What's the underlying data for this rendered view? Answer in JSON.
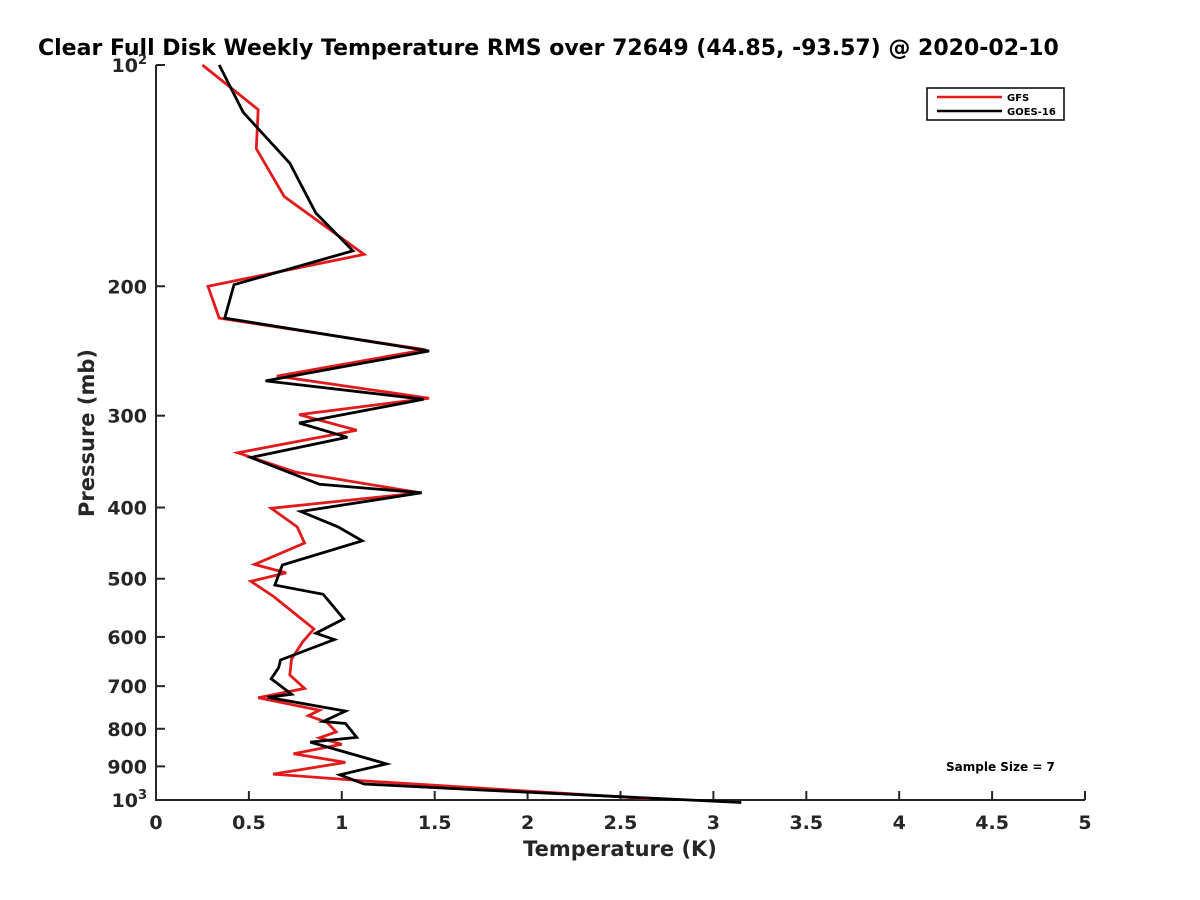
{
  "chart_data": {
    "type": "line",
    "title": "Clear Full Disk Weekly Temperature RMS over 72649 (44.85, -93.57) @ 2020-02-10",
    "xlabel": "Temperature (K)",
    "ylabel": "Pressure (mb)",
    "xlim": [
      0,
      5
    ],
    "ylim": [
      100,
      1000
    ],
    "y_scale": "log",
    "y_reversed": true,
    "grid": false,
    "legend_position": "top-right",
    "x_ticks": [
      "0",
      "0.5",
      "1",
      "1.5",
      "2",
      "2.5",
      "3",
      "3.5",
      "4",
      "4.5",
      "5"
    ],
    "y_ticks": [
      {
        "value": 100,
        "label": "10",
        "sup": "2"
      },
      {
        "value": 200,
        "label": "200",
        "sup": ""
      },
      {
        "value": 300,
        "label": "300",
        "sup": ""
      },
      {
        "value": 400,
        "label": "400",
        "sup": ""
      },
      {
        "value": 500,
        "label": "500",
        "sup": ""
      },
      {
        "value": 600,
        "label": "600",
        "sup": ""
      },
      {
        "value": 700,
        "label": "700",
        "sup": ""
      },
      {
        "value": 800,
        "label": "800",
        "sup": ""
      },
      {
        "value": 900,
        "label": "900",
        "sup": ""
      },
      {
        "value": 1000,
        "label": "10",
        "sup": "3"
      }
    ],
    "annotation": "Sample Size = 7",
    "series": [
      {
        "name": "GFS",
        "color": "#e31a1c",
        "points": [
          [
            0.25,
            100
          ],
          [
            0.55,
            115
          ],
          [
            0.54,
            130
          ],
          [
            0.69,
            151
          ],
          [
            1.12,
            181
          ],
          [
            0.28,
            200
          ],
          [
            0.34,
            221
          ],
          [
            1.45,
            244
          ],
          [
            0.65,
            265
          ],
          [
            1.47,
            284
          ],
          [
            0.77,
            299
          ],
          [
            1.08,
            314
          ],
          [
            0.44,
            337
          ],
          [
            0.75,
            358
          ],
          [
            1.42,
            382
          ],
          [
            0.62,
            401
          ],
          [
            0.76,
            425
          ],
          [
            0.8,
            447
          ],
          [
            0.53,
            478
          ],
          [
            0.7,
            491
          ],
          [
            0.51,
            504
          ],
          [
            0.63,
            528
          ],
          [
            0.76,
            561
          ],
          [
            0.85,
            585
          ],
          [
            0.79,
            609
          ],
          [
            0.73,
            643
          ],
          [
            0.72,
            676
          ],
          [
            0.8,
            705
          ],
          [
            0.55,
            726
          ],
          [
            0.88,
            755
          ],
          [
            0.82,
            768
          ],
          [
            0.92,
            784
          ],
          [
            0.97,
            808
          ],
          [
            0.88,
            823
          ],
          [
            1.0,
            840
          ],
          [
            0.74,
            865
          ],
          [
            1.02,
            889
          ],
          [
            0.63,
            922
          ],
          [
            1.12,
            942
          ],
          [
            2.66,
            996
          ]
        ]
      },
      {
        "name": "GOES-16",
        "color": "#000000",
        "points": [
          [
            0.34,
            100
          ],
          [
            0.47,
            116
          ],
          [
            0.72,
            136
          ],
          [
            0.86,
            159
          ],
          [
            1.06,
            179
          ],
          [
            0.42,
            199
          ],
          [
            0.37,
            221
          ],
          [
            1.47,
            245
          ],
          [
            0.59,
            269
          ],
          [
            1.44,
            285
          ],
          [
            0.77,
            307
          ],
          [
            1.03,
            321
          ],
          [
            0.51,
            342
          ],
          [
            0.88,
            372
          ],
          [
            1.43,
            382
          ],
          [
            0.78,
            405
          ],
          [
            0.98,
            425
          ],
          [
            1.11,
            444
          ],
          [
            0.68,
            479
          ],
          [
            0.64,
            510
          ],
          [
            0.9,
            525
          ],
          [
            1.01,
            567
          ],
          [
            0.86,
            593
          ],
          [
            0.96,
            605
          ],
          [
            0.67,
            645
          ],
          [
            0.66,
            661
          ],
          [
            0.62,
            684
          ],
          [
            0.73,
            718
          ],
          [
            0.6,
            725
          ],
          [
            1.02,
            757
          ],
          [
            0.9,
            782
          ],
          [
            1.02,
            787
          ],
          [
            1.08,
            822
          ],
          [
            0.83,
            834
          ],
          [
            1.24,
            893
          ],
          [
            0.99,
            924
          ],
          [
            1.12,
            951
          ],
          [
            1.71,
            968
          ],
          [
            3.15,
            1008
          ]
        ]
      }
    ]
  }
}
